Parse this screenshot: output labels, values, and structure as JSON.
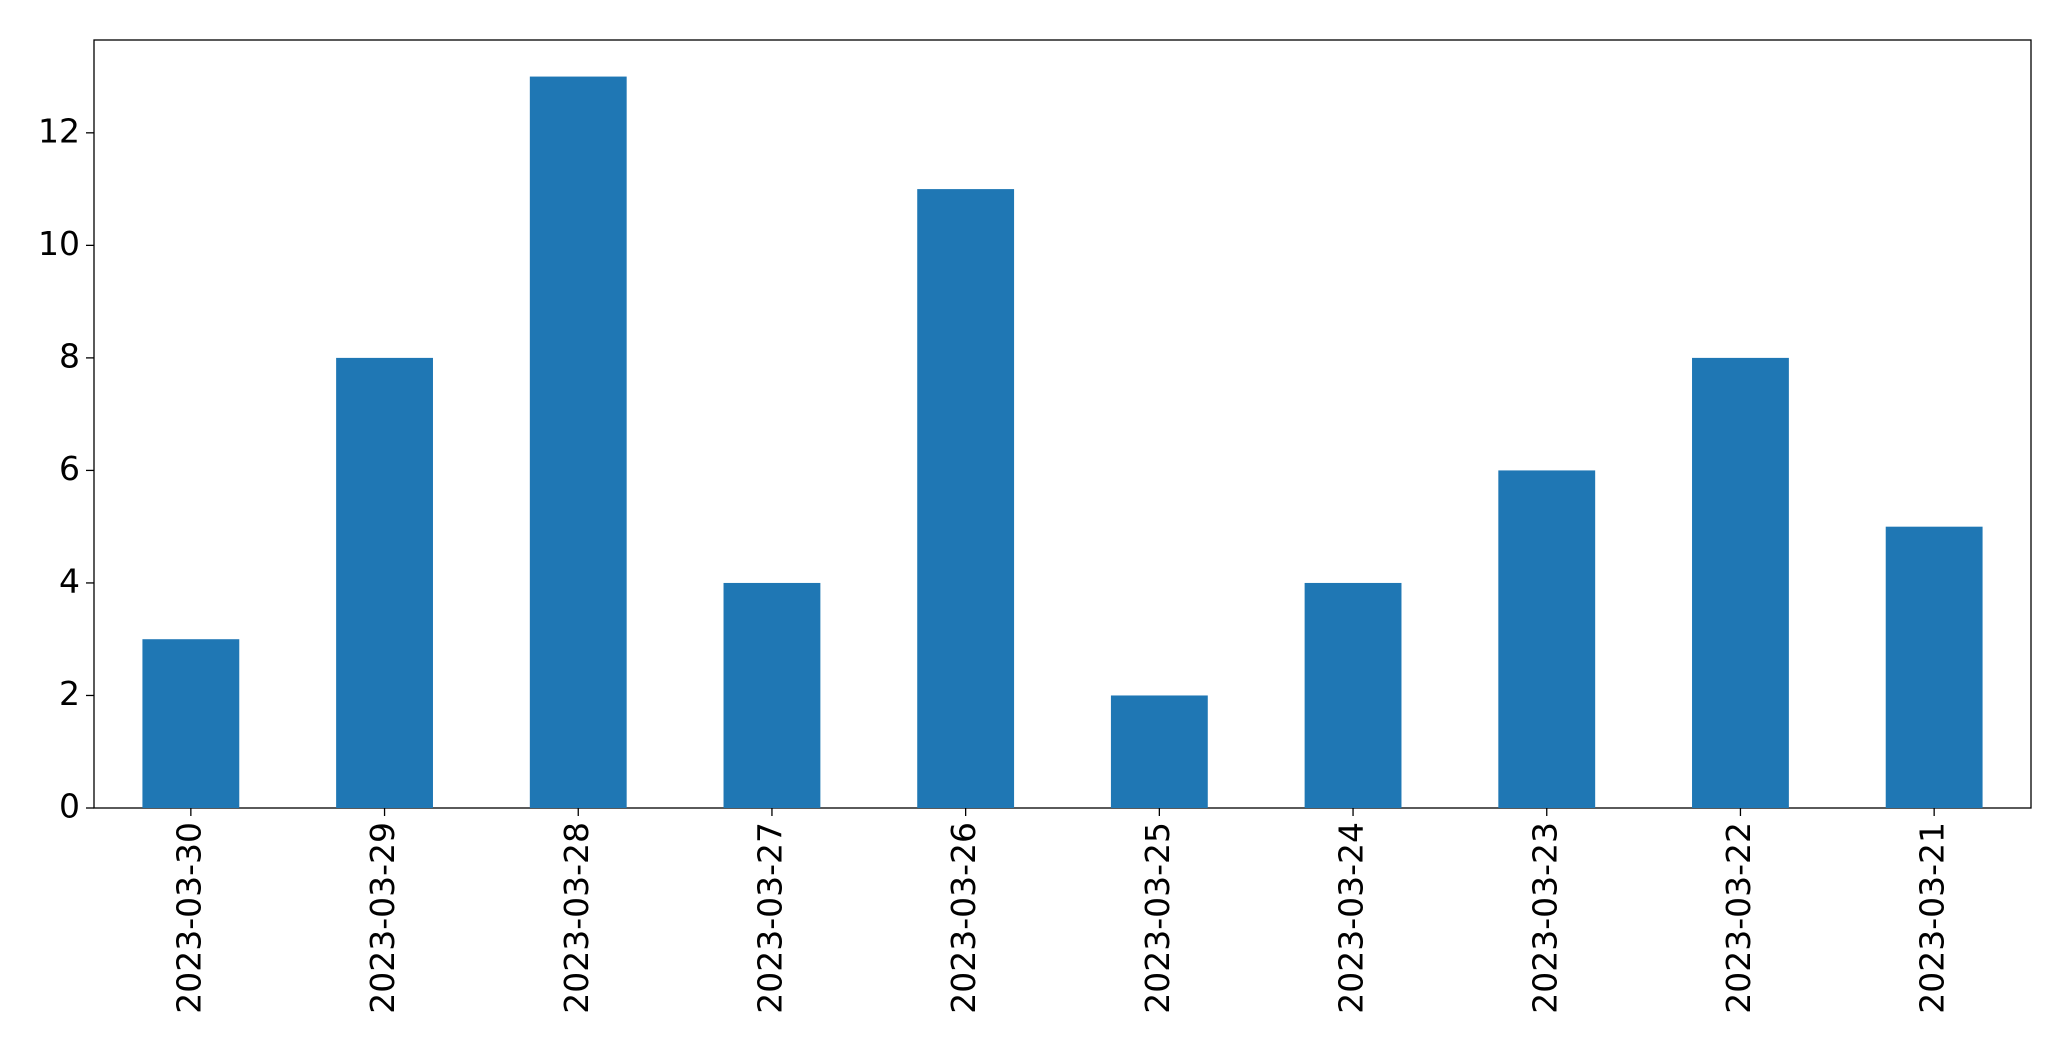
{
  "chart_data": {
    "type": "bar",
    "categories": [
      "2023-03-30",
      "2023-03-29",
      "2023-03-28",
      "2023-03-27",
      "2023-03-26",
      "2023-03-25",
      "2023-03-24",
      "2023-03-23",
      "2023-03-22",
      "2023-03-21"
    ],
    "values": [
      3,
      8,
      13,
      4,
      11,
      2,
      4,
      6,
      8,
      5
    ],
    "color": "#1f77b4",
    "ylim": [
      0,
      13.65
    ],
    "yticks": [
      0,
      2,
      4,
      6,
      8,
      10,
      12
    ],
    "grid": false
  }
}
